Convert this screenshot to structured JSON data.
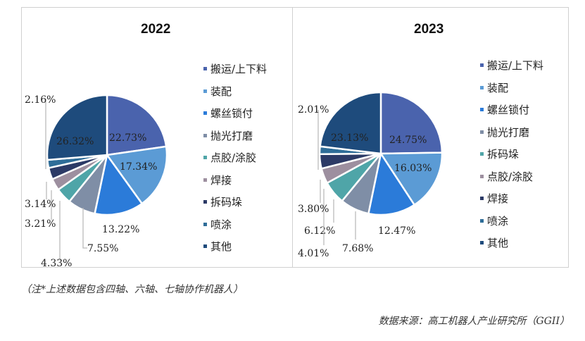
{
  "chart_data": [
    {
      "type": "pie",
      "title": "2022",
      "categories": [
        "搬运/上下料",
        "装配",
        "螺丝锁付",
        "抛光打磨",
        "点胶/涂胶",
        "焊接",
        "拆码垛",
        "喷涂",
        "其他"
      ],
      "values": [
        22.73,
        17.34,
        13.22,
        7.55,
        4.33,
        3.21,
        3.14,
        2.16,
        26.32
      ],
      "labels": [
        "22.73%",
        "17.34%",
        "13.22%",
        "7.55%",
        "4.33%",
        "3.21%",
        "3.14%",
        "2.16%",
        "26.32%"
      ],
      "legend": "right"
    },
    {
      "type": "pie",
      "title": "2023",
      "categories": [
        "搬运/上下料",
        "装配",
        "螺丝锁付",
        "抛光打磨",
        "拆码垛",
        "点胶/涂胶",
        "焊接",
        "喷涂",
        "其他"
      ],
      "values": [
        24.75,
        16.03,
        12.47,
        7.68,
        6.12,
        4.01,
        3.8,
        2.01,
        23.13
      ],
      "labels": [
        "24.75%",
        "16.03%",
        "12.47%",
        "7.68%",
        "6.12%",
        "4.01%",
        "3.80%",
        "2.01%",
        "23.13%"
      ],
      "legend": "right"
    }
  ],
  "colors": [
    "#4a63ad",
    "#5b9bd5",
    "#2b7bd9",
    "#7f8ea6",
    "#4fa5a8",
    "#9d8f9f",
    "#2c3a66",
    "#2f6d98",
    "#1e4b7c"
  ],
  "notes": {
    "footnote": "（注*上述数据包含四轴、六轴、七轴协作机器人）",
    "source": "数据来源：高工机器人产业研究所（GGII）"
  }
}
